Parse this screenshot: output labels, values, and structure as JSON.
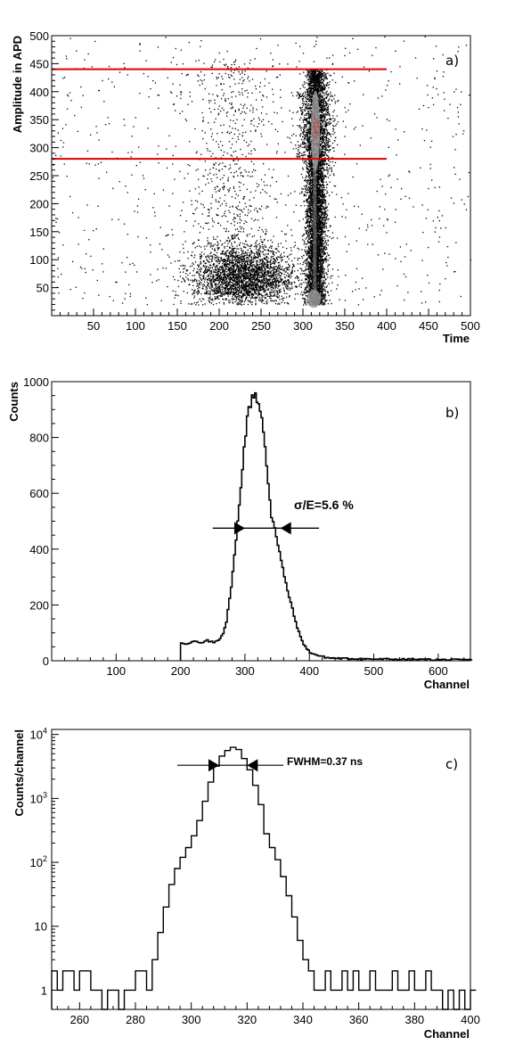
{
  "panels": [
    {
      "label": "a)",
      "type": "scatter",
      "xlabel": "Time",
      "ylabel": "Amplitude in APD",
      "xlim": [
        0,
        500
      ],
      "ylim": [
        0,
        500
      ],
      "xticks": [
        50,
        100,
        150,
        200,
        250,
        300,
        350,
        400,
        450,
        500
      ],
      "yticks": [
        50,
        100,
        150,
        200,
        250,
        300,
        350,
        400,
        450,
        500
      ],
      "hlines": [
        {
          "y": 440,
          "x_start": 0,
          "x_end": 400,
          "color": "#e00000"
        },
        {
          "y": 280,
          "x_start": 0,
          "x_end": 400,
          "color": "#e00000"
        }
      ],
      "clusters": [
        {
          "x_center": 315,
          "x_spread": 7,
          "y_from": 20,
          "y_to": 440,
          "density": "high"
        },
        {
          "x_center": 225,
          "x_spread": 35,
          "y_center": 75,
          "y_spread": 30,
          "density": "medium"
        },
        {
          "x_center": 210,
          "x_spread": 25,
          "y_from": 100,
          "y_to": 450,
          "density": "low"
        }
      ],
      "colors": {
        "points": "#000000",
        "core": "#9a9a9a",
        "hot": "#e03030"
      }
    },
    {
      "label": "b)",
      "type": "line",
      "xlabel": "Channel",
      "ylabel": "Counts",
      "xlim": [
        0,
        650
      ],
      "ylim": [
        0,
        1000
      ],
      "xticks": [
        100,
        200,
        300,
        400,
        500,
        600
      ],
      "yticks": [
        0,
        200,
        400,
        600,
        800,
        1000
      ],
      "annotation": {
        "text": "σ/E=5.6 %",
        "arrow_y": 475,
        "arrow_x_left": 300,
        "arrow_x_right": 355,
        "line_x_from": 250,
        "line_x_to": 415
      },
      "series": [
        {
          "x": [
            200,
            210,
            220,
            230,
            240,
            250,
            260,
            265,
            270,
            275,
            280,
            285,
            290,
            295,
            300,
            305,
            310,
            315,
            320,
            325,
            330,
            335,
            340,
            345,
            350,
            355,
            360,
            365,
            370,
            375,
            380,
            385,
            390,
            395,
            400,
            410,
            420,
            430,
            450,
            500,
            550,
            600,
            650
          ],
          "y": [
            65,
            60,
            70,
            62,
            72,
            65,
            80,
            100,
            140,
            220,
            320,
            430,
            560,
            700,
            820,
            900,
            950,
            960,
            920,
            860,
            760,
            640,
            520,
            480,
            420,
            360,
            300,
            250,
            210,
            160,
            120,
            85,
            60,
            42,
            30,
            20,
            14,
            10,
            8,
            6,
            5,
            4,
            3
          ]
        }
      ]
    },
    {
      "label": "c)",
      "type": "line",
      "xlabel": "Channel",
      "ylabel": "Counts/channel",
      "xlim": [
        250,
        400
      ],
      "ylim": [
        0.5,
        12000
      ],
      "yscale": "log",
      "xticks": [
        260,
        280,
        300,
        320,
        340,
        360,
        380,
        400
      ],
      "yticks": [
        {
          "value": 1,
          "base": "1",
          "exp": ""
        },
        {
          "value": 10,
          "base": "10",
          "exp": ""
        },
        {
          "value": 100,
          "base": "10",
          "exp": "2"
        },
        {
          "value": 1000,
          "base": "10",
          "exp": "3"
        },
        {
          "value": 10000,
          "base": "10",
          "exp": "4"
        }
      ],
      "annotation": {
        "text": "FWHM=0.37 ns",
        "arrow_y": 3300,
        "arrow_x_left": 310,
        "arrow_x_right": 320,
        "line_x_from": 295,
        "line_x_to": 333
      },
      "series": [
        {
          "x": [
            250,
            252,
            254,
            256,
            258,
            260,
            262,
            264,
            266,
            268,
            270,
            272,
            274,
            276,
            278,
            280,
            282,
            284,
            286,
            288,
            290,
            292,
            294,
            296,
            298,
            300,
            302,
            304,
            306,
            308,
            310,
            312,
            314,
            316,
            318,
            320,
            322,
            324,
            326,
            328,
            330,
            332,
            334,
            336,
            338,
            340,
            342,
            344,
            346,
            348,
            350,
            352,
            354,
            356,
            358,
            360,
            362,
            364,
            366,
            368,
            370,
            372,
            374,
            376,
            378,
            380,
            382,
            384,
            386,
            388,
            390,
            392,
            394,
            396,
            398,
            400
          ],
          "y": [
            2,
            1,
            2,
            2,
            1,
            2,
            2,
            1,
            1,
            0.5,
            1,
            1,
            0.5,
            1,
            1,
            2,
            2,
            1,
            3,
            8,
            20,
            45,
            80,
            120,
            170,
            260,
            450,
            900,
            1800,
            3200,
            4600,
            5600,
            6300,
            5800,
            4200,
            2800,
            1600,
            800,
            280,
            170,
            110,
            60,
            30,
            14,
            6,
            3,
            2,
            1,
            1,
            2,
            1,
            1,
            2,
            1,
            2,
            1,
            1,
            2,
            1,
            1,
            1,
            2,
            1,
            1,
            2,
            1,
            1,
            2,
            1,
            1,
            0.5,
            1,
            0.5,
            1,
            0.5,
            1
          ]
        }
      ]
    }
  ],
  "chart_data": [
    {
      "type": "scatter",
      "title": "",
      "xlabel": "Time",
      "ylabel": "Amplitude in APD",
      "xlim": [
        0,
        500
      ],
      "ylim": [
        0,
        500
      ],
      "note": "density scatter with two horizontal cut lines at 280 and 440"
    },
    {
      "type": "line",
      "title": "",
      "xlabel": "Channel",
      "ylabel": "Counts",
      "xlim": [
        0,
        650
      ],
      "ylim": [
        0,
        1000
      ]
    },
    {
      "type": "line",
      "title": "",
      "xlabel": "Channel",
      "ylabel": "Counts/channel",
      "xlim": [
        250,
        400
      ],
      "ylim": [
        0.5,
        12000
      ],
      "yscale": "log"
    }
  ]
}
